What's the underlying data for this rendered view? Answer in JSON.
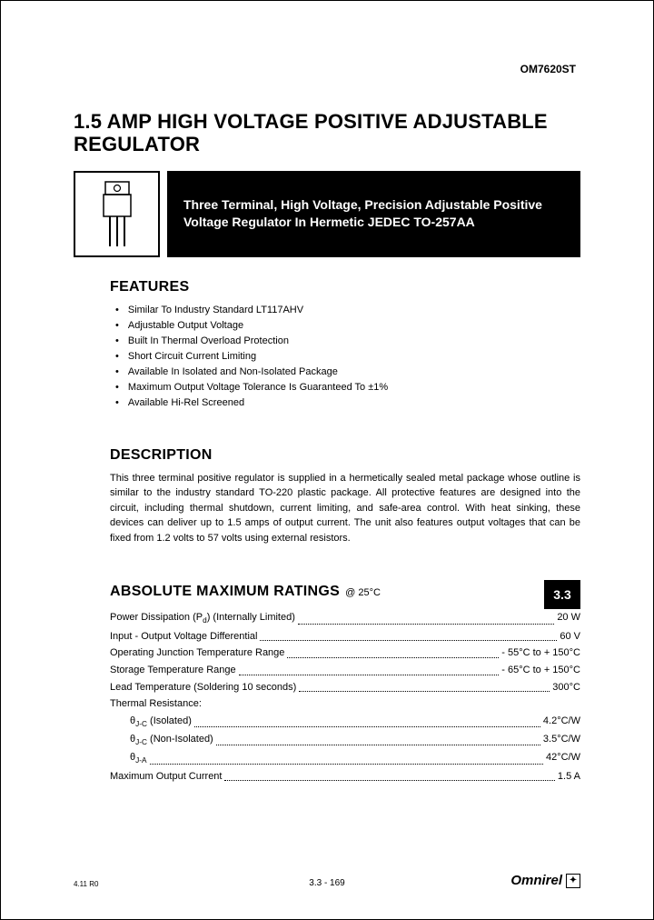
{
  "part_number": "OM7620ST",
  "title": "1.5 AMP HIGH VOLTAGE POSITIVE ADJUSTABLE REGULATOR",
  "hero_text": "Three Terminal, High Voltage, Precision Adjustable Positive Voltage Regulator In Hermetic JEDEC TO-257AA",
  "features_heading": "FEATURES",
  "features": [
    "Similar To Industry Standard LT117AHV",
    "Adjustable Output Voltage",
    "Built In Thermal Overload Protection",
    "Short Circuit Current Limiting",
    "Available In Isolated and Non-Isolated Package",
    "Maximum Output Voltage Tolerance Is Guaranteed To ±1%",
    "Available Hi-Rel Screened"
  ],
  "description_heading": "DESCRIPTION",
  "description_text": "This three terminal positive regulator is supplied in a hermetically sealed metal package whose outline is similar to the industry standard TO-220 plastic package. All protective features are designed into the circuit, including thermal shutdown, current limiting, and safe-area control. With heat sinking, these devices can deliver up to 1.5 amps of output current. The unit also features output voltages that can be fixed from 1.2 volts to 57 volts using external resistors.",
  "ratings_heading": "ABSOLUTE MAXIMUM RATINGS",
  "ratings_at": "@ 25°C",
  "section_badge": "3.3",
  "ratings": [
    {
      "label": "Power Dissipation (P_d) (Internally Limited)",
      "value": "20 W",
      "indent": false
    },
    {
      "label": "Input - Output Voltage Differential",
      "value": "60 V",
      "indent": false
    },
    {
      "label": "Operating Junction Temperature Range",
      "value": "- 55°C to + 150°C",
      "indent": false
    },
    {
      "label": "Storage Temperature Range",
      "value": "- 65°C to + 150°C",
      "indent": false
    },
    {
      "label": "Lead Temperature (Soldering 10 seconds)",
      "value": "300°C",
      "indent": false
    },
    {
      "label": "Thermal Resistance:",
      "value": "",
      "indent": false,
      "nodots": true
    },
    {
      "label": "θ_J-C (Isolated)",
      "value": "4.2°C/W",
      "indent": true
    },
    {
      "label": "θ_J-C (Non-Isolated)",
      "value": "3.5°C/W",
      "indent": true
    },
    {
      "label": "θ_J-A",
      "value": "42°C/W",
      "indent": true
    },
    {
      "label": "Maximum Output Current",
      "value": "1.5 A",
      "indent": false
    }
  ],
  "footer": {
    "left": "4.11 R0",
    "center": "3.3 - 169",
    "logo": "Omnirel"
  },
  "colors": {
    "text": "#000000",
    "bg": "#ffffff",
    "inverse_bg": "#000000",
    "inverse_text": "#ffffff"
  },
  "fonts": {
    "title_size_pt": 22,
    "section_size_pt": 16,
    "body_size_pt": 11,
    "hero_size_pt": 14
  }
}
